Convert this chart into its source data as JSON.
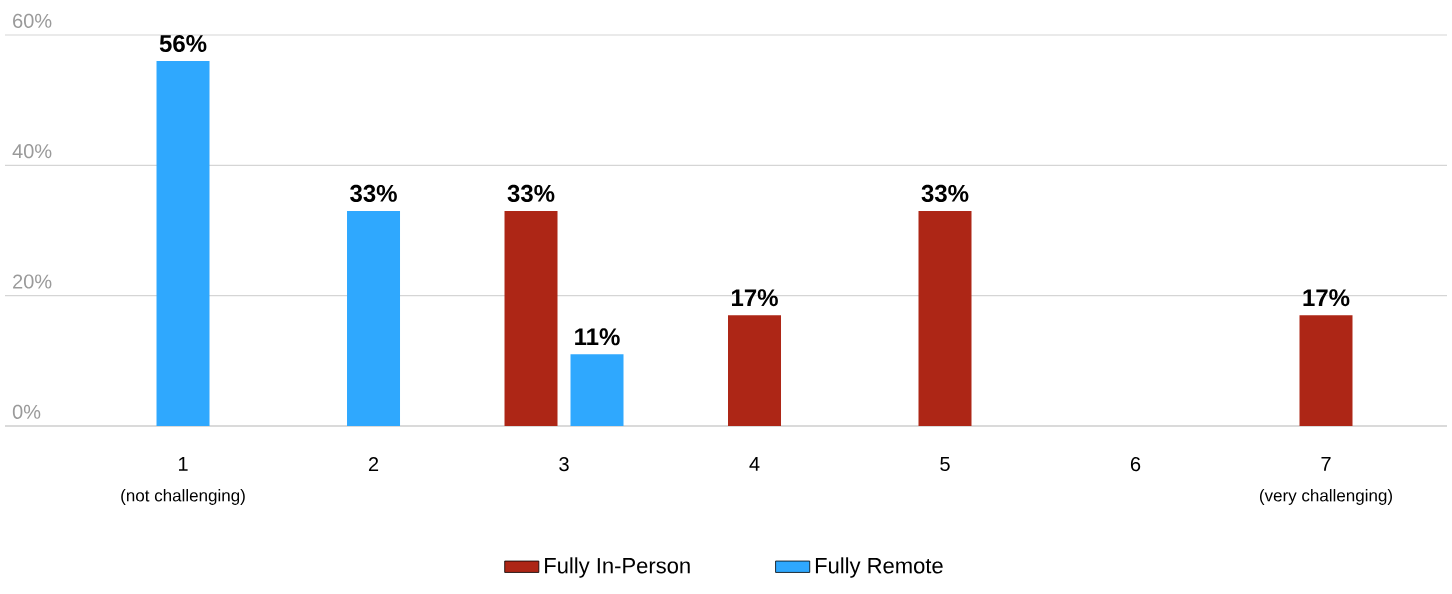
{
  "chart_data": {
    "type": "bar",
    "categories": [
      "1",
      "2",
      "3",
      "4",
      "5",
      "6",
      "7"
    ],
    "series": [
      {
        "name": "Fully In-Person",
        "color": "#ad2616",
        "values": [
          null,
          null,
          33,
          17,
          33,
          null,
          17
        ],
        "value_labels": [
          null,
          null,
          "33%",
          "17%",
          "33%",
          null,
          "17%"
        ]
      },
      {
        "name": "Fully Remote",
        "color": "#2fa8fe",
        "values": [
          56,
          33,
          11,
          null,
          null,
          null,
          null
        ],
        "value_labels": [
          "56%",
          "33%",
          "11%",
          null,
          null,
          null,
          null
        ]
      }
    ],
    "ylim": [
      0,
      60
    ],
    "yticks": [
      {
        "value": 0,
        "label": "0%"
      },
      {
        "value": 20,
        "label": "20%"
      },
      {
        "value": 40,
        "label": "40%"
      },
      {
        "value": 60,
        "label": "60%"
      }
    ],
    "grid": "y",
    "legend": "bottom",
    "annotations": [
      "(not challenging)",
      "(very challenging)"
    ]
  }
}
